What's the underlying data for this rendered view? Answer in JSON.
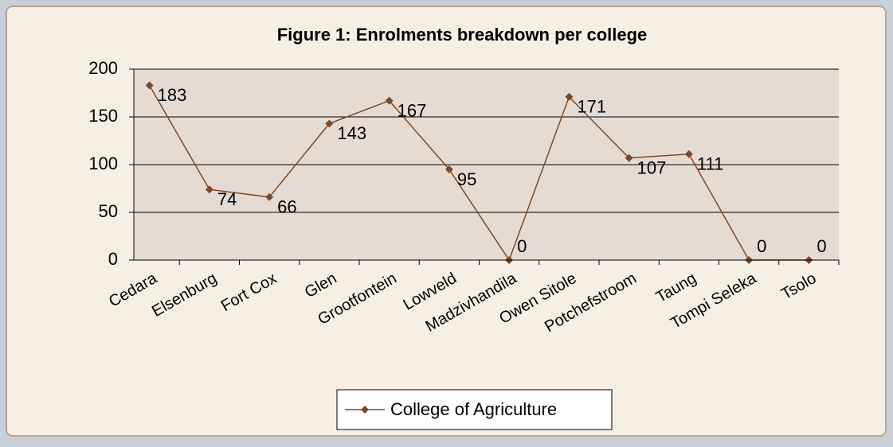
{
  "chart_data": {
    "type": "line",
    "title": "Figure 1: Enrolments breakdown per college",
    "categories": [
      "Cedara",
      "Elsenburg",
      "Fort Cox",
      "Glen",
      "Grootfontein",
      "Lowveld",
      "Madzivhandila",
      "Owen Sitole",
      "Potchefstroom",
      "Taung",
      "Tompi Seleka",
      "Tsolo"
    ],
    "series": [
      {
        "name": "College of Agriculture",
        "color": "#7a4a28",
        "values": [
          183,
          74,
          66,
          143,
          167,
          95,
          0,
          171,
          107,
          111,
          0,
          0
        ]
      }
    ],
    "ylim": [
      0,
      200
    ],
    "yticks": [
      0,
      50,
      100,
      150,
      200
    ],
    "grid": true,
    "legend": "bottom",
    "data_labels": true
  }
}
